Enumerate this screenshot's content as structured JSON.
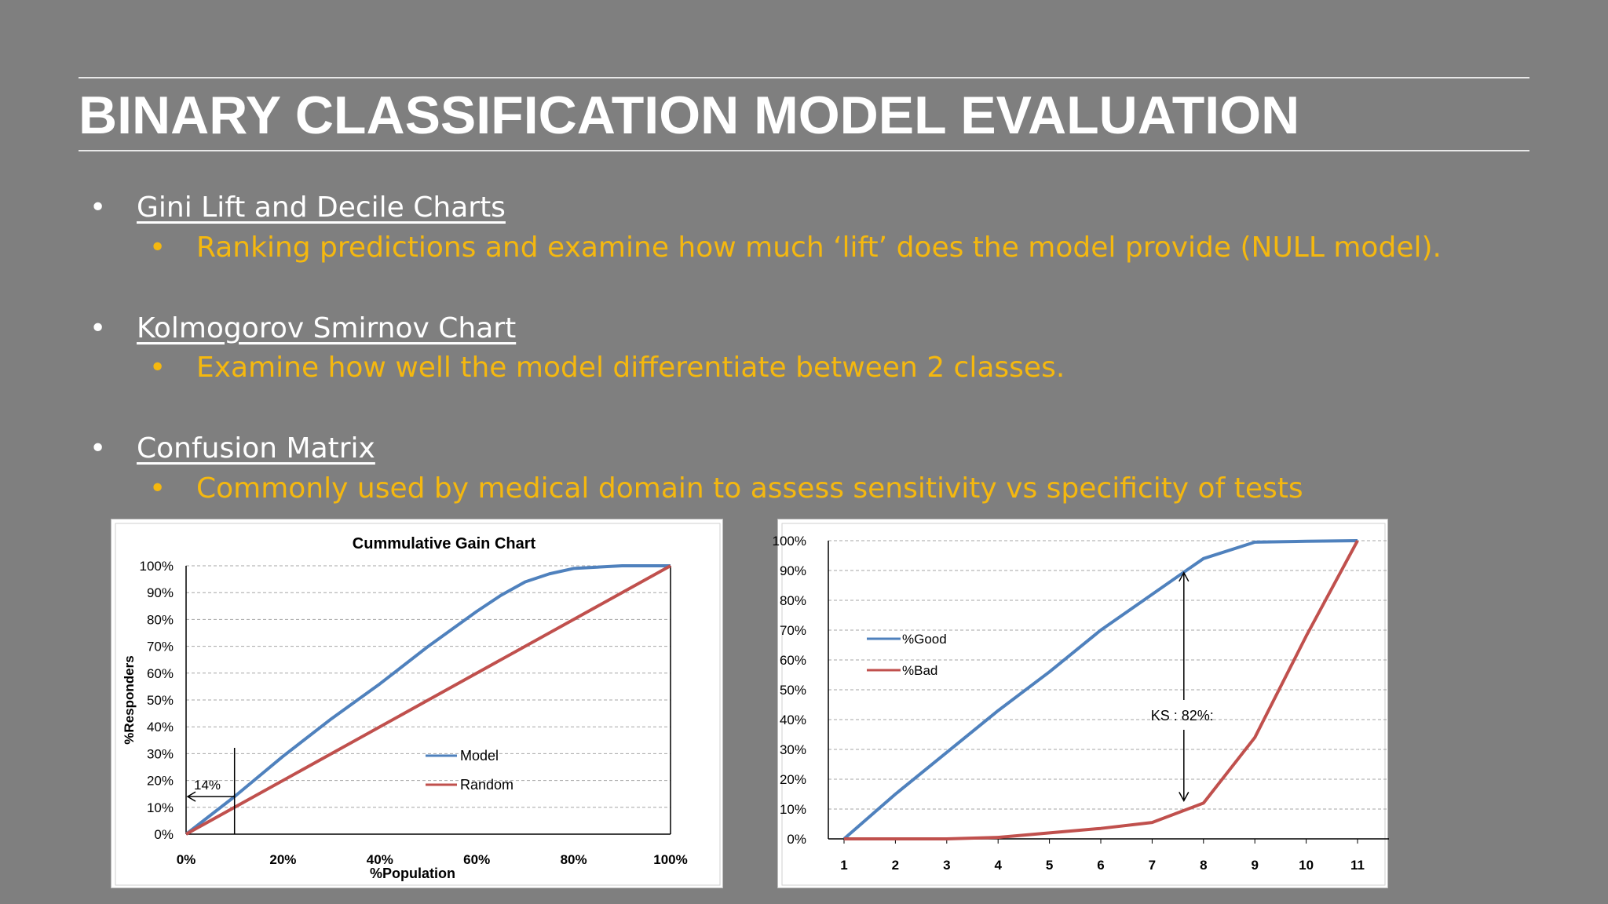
{
  "slide": {
    "title": "BINARY CLASSIFICATION MODEL EVALUATION",
    "bullets": [
      {
        "label": "Gini Lift and Decile Charts",
        "sub": "Ranking predictions and examine how much ‘lift’ does the model provide (NULL model)."
      },
      {
        "label": "Kolmogorov Smirnov Chart",
        "sub": "Examine how well the model differentiate between 2 classes."
      },
      {
        "label": "Confusion Matrix",
        "sub": "Commonly used by medical domain to assess sensitivity vs specificity of tests"
      }
    ]
  },
  "chart_data": [
    {
      "type": "line",
      "title": "Cummulative Gain Chart",
      "xlabel": "%Population",
      "ylabel": "%Responders",
      "x_ticks": [
        "0%",
        "20%",
        "40%",
        "60%",
        "80%",
        "100%"
      ],
      "y_ticks": [
        "0%",
        "10%",
        "20%",
        "30%",
        "40%",
        "50%",
        "60%",
        "70%",
        "80%",
        "90%",
        "100%"
      ],
      "xlim": [
        0,
        100
      ],
      "ylim": [
        0,
        100
      ],
      "grid": true,
      "legend_position": "center-right",
      "series": [
        {
          "name": "Model",
          "color": "#4f81bd",
          "x": [
            0,
            10,
            20,
            30,
            40,
            50,
            60,
            65,
            70,
            75,
            80,
            90,
            100
          ],
          "y": [
            0,
            14,
            29,
            43,
            56,
            70,
            83,
            89,
            94,
            97,
            99,
            100,
            100
          ]
        },
        {
          "name": "Random",
          "color": "#c0504d",
          "x": [
            0,
            100
          ],
          "y": [
            0,
            100
          ]
        }
      ],
      "annotations": [
        {
          "text": "14%",
          "x": 10,
          "y": 14
        }
      ]
    },
    {
      "type": "line",
      "x_ticks": [
        "1",
        "2",
        "3",
        "4",
        "5",
        "6",
        "7",
        "8",
        "9",
        "10",
        "11"
      ],
      "y_ticks": [
        "0%",
        "10%",
        "20%",
        "30%",
        "40%",
        "50%",
        "60%",
        "70%",
        "80%",
        "90%",
        "100%"
      ],
      "xlim": [
        1,
        11
      ],
      "ylim": [
        0,
        100
      ],
      "grid": true,
      "legend_position": "center-left",
      "series": [
        {
          "name": "%Good",
          "color": "#4f81bd",
          "x": [
            1,
            2,
            3,
            4,
            5,
            6,
            7,
            8,
            9,
            10,
            11
          ],
          "y": [
            0,
            15,
            29,
            43,
            56,
            70,
            82,
            94,
            99.5,
            99.8,
            100
          ]
        },
        {
          "name": "%Bad",
          "color": "#c0504d",
          "x": [
            1,
            2,
            3,
            4,
            5,
            6,
            7,
            8,
            9,
            10,
            11
          ],
          "y": [
            0,
            0,
            0,
            0.5,
            2,
            3.5,
            5.5,
            12,
            34,
            68,
            100
          ]
        }
      ],
      "annotations": [
        {
          "text": "KS : 82%:",
          "x": 8
        }
      ]
    }
  ]
}
